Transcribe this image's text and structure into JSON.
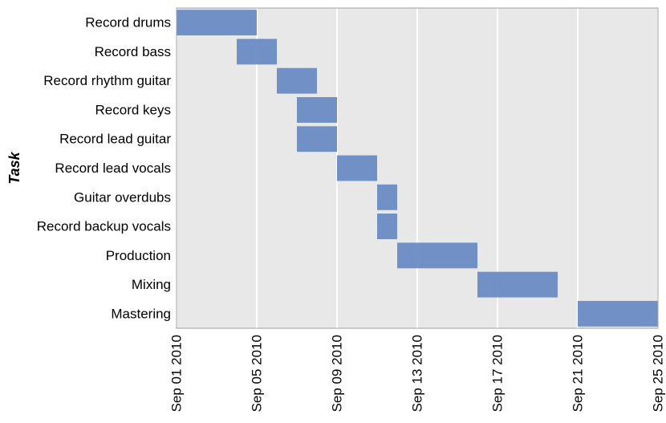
{
  "chart_data": {
    "type": "bar",
    "orientation": "horizontal-gantt",
    "title": "",
    "xlabel": "",
    "ylabel": "Task",
    "xlim": [
      "2010-09-01",
      "2010-09-25"
    ],
    "x_ticks": [
      "Sep 01 2010",
      "Sep 05 2010",
      "Sep 09 2010",
      "Sep 13 2010",
      "Sep 17 2010",
      "Sep 21 2010",
      "Sep 25 2010"
    ],
    "x_tick_dates": [
      "2010-09-01",
      "2010-09-05",
      "2010-09-09",
      "2010-09-13",
      "2010-09-17",
      "2010-09-21",
      "2010-09-25"
    ],
    "grid": true,
    "legend": "none",
    "bar_color": "#6a8bc3",
    "background_color": "#e8e8e8",
    "grid_color": "#ffffff",
    "tasks": [
      {
        "name": "Record drums",
        "start": "2010-09-01",
        "end": "2010-09-05"
      },
      {
        "name": "Record bass",
        "start": "2010-09-04",
        "end": "2010-09-06"
      },
      {
        "name": "Record rhythm guitar",
        "start": "2010-09-06",
        "end": "2010-09-08"
      },
      {
        "name": "Record keys",
        "start": "2010-09-07",
        "end": "2010-09-09"
      },
      {
        "name": "Record lead guitar",
        "start": "2010-09-07",
        "end": "2010-09-09"
      },
      {
        "name": "Record lead vocals",
        "start": "2010-09-09",
        "end": "2010-09-11"
      },
      {
        "name": "Guitar overdubs",
        "start": "2010-09-11",
        "end": "2010-09-12"
      },
      {
        "name": "Record backup vocals",
        "start": "2010-09-11",
        "end": "2010-09-12"
      },
      {
        "name": "Production",
        "start": "2010-09-12",
        "end": "2010-09-16"
      },
      {
        "name": "Mixing",
        "start": "2010-09-16",
        "end": "2010-09-20"
      },
      {
        "name": "Mastering",
        "start": "2010-09-21",
        "end": "2010-09-25"
      }
    ]
  }
}
